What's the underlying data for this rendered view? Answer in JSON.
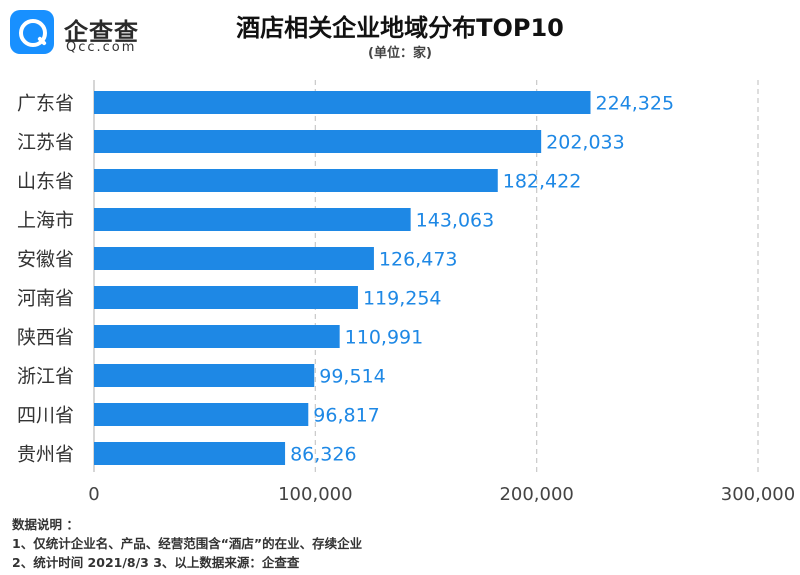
{
  "logo": {
    "cn": "企查查",
    "en": "Qcc.com"
  },
  "chart_data": {
    "type": "bar",
    "orientation": "horizontal",
    "title": "酒店相关企业地域分布TOP10",
    "subtitle": "(单位：家)",
    "categories": [
      "广东省",
      "江苏省",
      "山东省",
      "上海市",
      "安徽省",
      "河南省",
      "陕西省",
      "浙江省",
      "四川省",
      "贵州省"
    ],
    "values": [
      224325,
      202033,
      182422,
      143063,
      126473,
      119254,
      110991,
      99514,
      96817,
      86326
    ],
    "value_labels": [
      "224,325",
      "202,033",
      "182,422",
      "143,063",
      "126,473",
      "119,254",
      "110,991",
      "99,514",
      "96,817",
      "86,326"
    ],
    "xlim": [
      0,
      300000
    ],
    "xticks": [
      0,
      100000,
      200000,
      300000
    ],
    "xtick_labels": [
      "0",
      "100,000",
      "200,000",
      "300,000"
    ],
    "grid": "vertical dashed",
    "bar_color": "#1e88e5",
    "label_color": "#1e88e5"
  },
  "notes": {
    "heading": "数据说明 ：",
    "line1": "1、仅统计企业名、产品、经营范围含“酒店”的在业、存续企业",
    "line2": "2、统计时间 2021/8/3   3、以上数据来源：企查查"
  }
}
